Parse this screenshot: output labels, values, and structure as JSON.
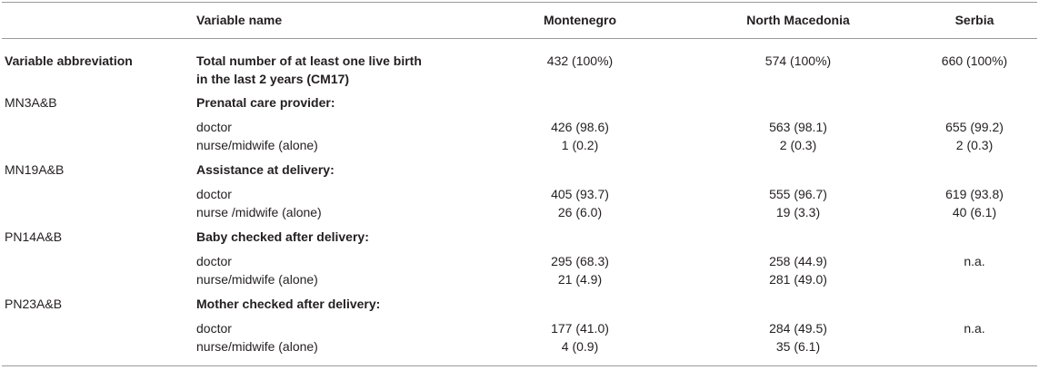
{
  "header": {
    "variable_name": "Variable name",
    "montenegro": "Montenegro",
    "north_macedonia": "North Macedonia",
    "serbia": "Serbia"
  },
  "total_row": {
    "abbr_header": "Variable abbreviation",
    "label_line1": "Total number of at least one live birth",
    "label_line2": "in the last 2 years (CM17)",
    "montenegro": "432 (100%)",
    "north_macedonia": "574 (100%)",
    "serbia": "660 (100%)"
  },
  "groups": [
    {
      "code": "MN3A&B",
      "title": "Prenatal care provider:",
      "rows": [
        {
          "label": "doctor",
          "montenegro": "426 (98.6)",
          "north_macedonia": "563 (98.1)",
          "serbia": "655 (99.2)"
        },
        {
          "label": "nurse/midwife (alone)",
          "montenegro": "1 (0.2)",
          "north_macedonia": "2 (0.3)",
          "serbia": "2 (0.3)"
        }
      ]
    },
    {
      "code": "MN19A&B",
      "title": "Assistance at delivery:",
      "rows": [
        {
          "label": "doctor",
          "montenegro": "405 (93.7)",
          "north_macedonia": "555 (96.7)",
          "serbia": "619 (93.8)"
        },
        {
          "label": "nurse /midwife (alone)",
          "montenegro": "26 (6.0)",
          "north_macedonia": "19 (3.3)",
          "serbia": "40 (6.1)"
        }
      ]
    },
    {
      "code": "PN14A&B",
      "title": "Baby checked after delivery:",
      "rows": [
        {
          "label": "doctor",
          "montenegro": "295 (68.3)",
          "north_macedonia": "258 (44.9)",
          "serbia": "n.a."
        },
        {
          "label": "nurse/midwife (alone)",
          "montenegro": "21 (4.9)",
          "north_macedonia": "281 (49.0)",
          "serbia": ""
        }
      ]
    },
    {
      "code": "PN23A&B",
      "title": "Mother checked after delivery:",
      "rows": [
        {
          "label": "doctor",
          "montenegro": "177 (41.0)",
          "north_macedonia": "284 (49.5)",
          "serbia": "n.a."
        },
        {
          "label": "nurse/midwife (alone)",
          "montenegro": "4 (0.9)",
          "north_macedonia": "35 (6.1)",
          "serbia": ""
        }
      ]
    }
  ]
}
